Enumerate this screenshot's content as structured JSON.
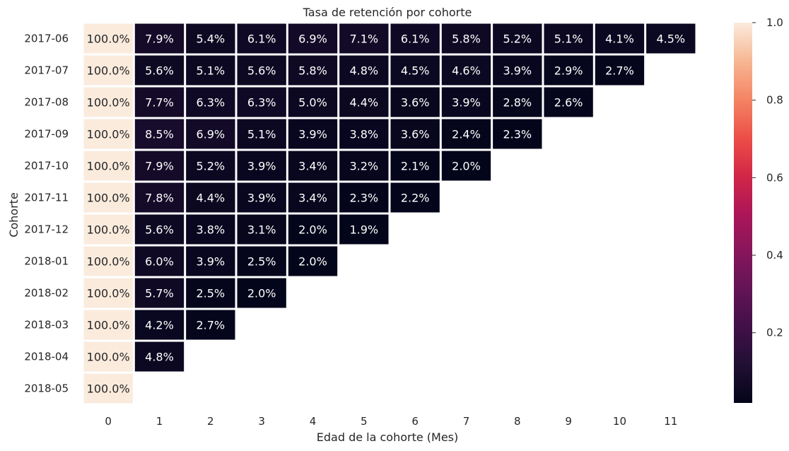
{
  "chart_data": {
    "type": "heatmap",
    "title": "Tasa de retención por cohorte",
    "xlabel": "Edad de la cohorte (Mes)",
    "ylabel": "Cohorte",
    "x_categories": [
      "0",
      "1",
      "2",
      "3",
      "4",
      "5",
      "6",
      "7",
      "8",
      "9",
      "10",
      "11"
    ],
    "y_categories": [
      "2017-06",
      "2017-07",
      "2017-08",
      "2017-09",
      "2017-10",
      "2017-11",
      "2017-12",
      "2018-01",
      "2018-02",
      "2018-03",
      "2018-04",
      "2018-05"
    ],
    "values": [
      [
        1.0,
        0.079,
        0.054,
        0.061,
        0.069,
        0.071,
        0.061,
        0.058,
        0.052,
        0.051,
        0.041,
        0.045
      ],
      [
        1.0,
        0.056,
        0.051,
        0.056,
        0.058,
        0.048,
        0.045,
        0.046,
        0.039,
        0.029,
        0.027
      ],
      [
        1.0,
        0.077,
        0.063,
        0.063,
        0.05,
        0.044,
        0.036,
        0.039,
        0.028,
        0.026
      ],
      [
        1.0,
        0.085,
        0.069,
        0.051,
        0.039,
        0.038,
        0.036,
        0.024,
        0.023
      ],
      [
        1.0,
        0.079,
        0.052,
        0.039,
        0.034,
        0.032,
        0.021,
        0.02
      ],
      [
        1.0,
        0.078,
        0.044,
        0.039,
        0.034,
        0.023,
        0.022
      ],
      [
        1.0,
        0.056,
        0.038,
        0.031,
        0.02,
        0.019
      ],
      [
        1.0,
        0.06,
        0.039,
        0.025,
        0.02
      ],
      [
        1.0,
        0.057,
        0.025,
        0.02
      ],
      [
        1.0,
        0.042,
        0.027
      ],
      [
        1.0,
        0.048
      ],
      [
        1.0
      ]
    ],
    "labels": [
      [
        "100.0%",
        "7.9%",
        "5.4%",
        "6.1%",
        "6.9%",
        "7.1%",
        "6.1%",
        "5.8%",
        "5.2%",
        "5.1%",
        "4.1%",
        "4.5%"
      ],
      [
        "100.0%",
        "5.6%",
        "5.1%",
        "5.6%",
        "5.8%",
        "4.8%",
        "4.5%",
        "4.6%",
        "3.9%",
        "2.9%",
        "2.7%"
      ],
      [
        "100.0%",
        "7.7%",
        "6.3%",
        "6.3%",
        "5.0%",
        "4.4%",
        "3.6%",
        "3.9%",
        "2.8%",
        "2.6%"
      ],
      [
        "100.0%",
        "8.5%",
        "6.9%",
        "5.1%",
        "3.9%",
        "3.8%",
        "3.6%",
        "2.4%",
        "2.3%"
      ],
      [
        "100.0%",
        "7.9%",
        "5.2%",
        "3.9%",
        "3.4%",
        "3.2%",
        "2.1%",
        "2.0%"
      ],
      [
        "100.0%",
        "7.8%",
        "4.4%",
        "3.9%",
        "3.4%",
        "2.3%",
        "2.2%"
      ],
      [
        "100.0%",
        "5.6%",
        "3.8%",
        "3.1%",
        "2.0%",
        "1.9%"
      ],
      [
        "100.0%",
        "6.0%",
        "3.9%",
        "2.5%",
        "2.0%"
      ],
      [
        "100.0%",
        "5.7%",
        "2.5%",
        "2.0%"
      ],
      [
        "100.0%",
        "4.2%",
        "2.7%"
      ],
      [
        "100.0%",
        "4.8%"
      ],
      [
        "100.0%"
      ]
    ],
    "colorbar": {
      "colormap": "rocket",
      "range": [
        0.019,
        1.0
      ],
      "ticks": [
        0.2,
        0.4,
        0.6,
        0.8,
        1.0
      ],
      "tick_labels": [
        "0.2",
        "0.4",
        "0.6",
        "0.8",
        "1.0"
      ]
    }
  }
}
